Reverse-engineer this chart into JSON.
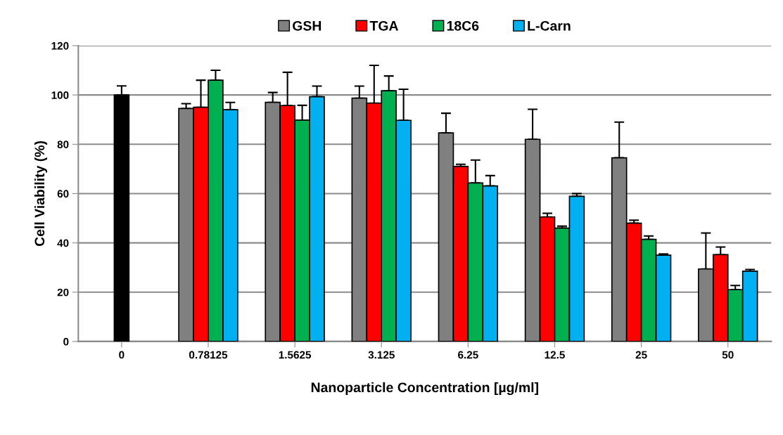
{
  "chart_data": {
    "type": "bar",
    "xlabel": "Nanoparticle Concentration [µg/ml]",
    "ylabel": "Cell Viability (%)",
    "categories": [
      "0",
      "0.78125",
      "1.5625",
      "3.125",
      "6.25",
      "12.5",
      "25",
      "50"
    ],
    "series": [
      {
        "color": "#000000",
        "values": [
          100,
          null,
          null,
          null,
          null,
          null,
          null,
          null
        ],
        "errors": [
          [
            100,
            103.7
          ],
          null,
          null,
          null,
          null,
          null,
          null,
          null
        ]
      },
      {
        "name": "GSH",
        "color": "#808080",
        "values": [
          null,
          94.5,
          97,
          98.7,
          84.6,
          82,
          74.5,
          29.4
        ],
        "errors": [
          null,
          [
            94.5,
            96.5
          ],
          [
            97,
            101
          ],
          [
            98.7,
            103.6
          ],
          [
            84.6,
            92.6
          ],
          [
            82,
            94.2
          ],
          [
            74.5,
            89
          ],
          [
            29.4,
            44
          ]
        ]
      },
      {
        "name": "TGA",
        "color": "#ff0000",
        "values": [
          null,
          95,
          95.7,
          96.7,
          71,
          50.5,
          48,
          35.2
        ],
        "errors": [
          null,
          [
            95,
            106
          ],
          [
            95.7,
            109.2
          ],
          [
            96.7,
            112
          ],
          [
            71,
            71.9
          ],
          [
            50.5,
            52
          ],
          [
            48,
            49.2
          ],
          [
            35.2,
            38.3
          ]
        ]
      },
      {
        "name": "18C6",
        "color": "#00b050",
        "values": [
          null,
          106,
          89.8,
          101.7,
          64.3,
          46,
          41.4,
          21
        ],
        "errors": [
          null,
          [
            106,
            110
          ],
          [
            89.8,
            95.8
          ],
          [
            101.7,
            107.7
          ],
          [
            64.3,
            73.6
          ],
          [
            46,
            46.8
          ],
          [
            41.4,
            42.8
          ],
          [
            21,
            22.7
          ]
        ]
      },
      {
        "name": "L-Carn",
        "color": "#00b0f0",
        "values": [
          null,
          94,
          99.3,
          89.7,
          63.1,
          58.9,
          35,
          28.5
        ],
        "errors": [
          null,
          [
            94,
            97
          ],
          [
            99.3,
            103.6
          ],
          [
            89.7,
            102.3
          ],
          [
            63.1,
            67.3
          ],
          [
            58.9,
            60
          ],
          [
            35,
            35.5
          ],
          [
            28.5,
            29.2
          ]
        ]
      }
    ],
    "ylim": [
      0,
      120
    ],
    "yticks": [
      0,
      20,
      40,
      60,
      80,
      100,
      120
    ],
    "grid": "y",
    "legend": "top"
  }
}
